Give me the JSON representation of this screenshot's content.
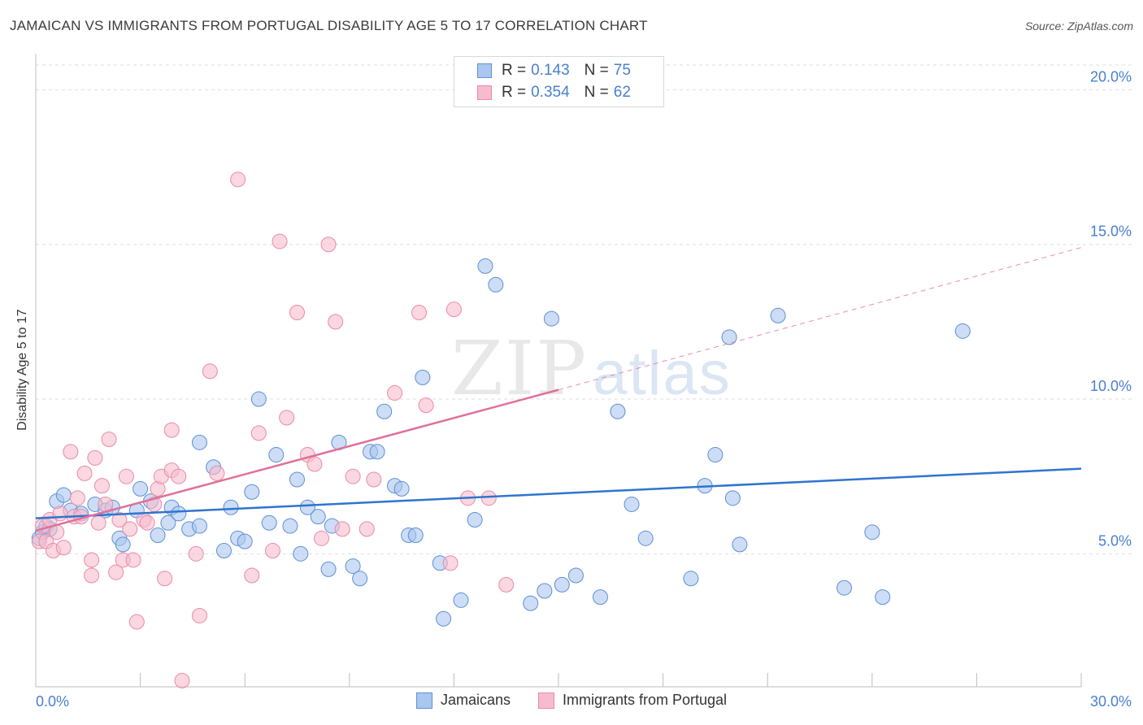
{
  "title": "JAMAICAN VS IMMIGRANTS FROM PORTUGAL DISABILITY AGE 5 TO 17 CORRELATION CHART",
  "source": "Source: ZipAtlas.com",
  "watermark": {
    "zip": "ZIP",
    "atlas": "atlas"
  },
  "legend_top": [
    {
      "r_label": "R =",
      "r_value": "0.143",
      "n_label": "N =",
      "n_value": "75"
    },
    {
      "r_label": "R =",
      "r_value": "0.354",
      "n_label": "N =",
      "n_value": "62"
    }
  ],
  "legend_bottom": [
    "Jamaicans",
    "Immigrants from Portugal"
  ],
  "colors": {
    "blue_fill": "#aac7ef",
    "blue_stroke": "#5e8fd6",
    "blue_line": "#2f74d0",
    "pink_fill": "#f6bccd",
    "pink_stroke": "#e98aa8",
    "pink_line": "#e0709a",
    "tick_label": "#4a7fd0",
    "grid": "#dedede"
  },
  "chart_data": {
    "type": "scatter",
    "title": "JAMAICAN VS IMMIGRANTS FROM PORTUGAL DISABILITY AGE 5 TO 17 CORRELATION CHART",
    "xlabel": "",
    "ylabel": "Disability Age 5 to 17",
    "xlim": [
      0,
      30
    ],
    "ylim": [
      0.7,
      20.8
    ],
    "x_tick_labels": [
      "0.0%",
      "30.0%"
    ],
    "y_ticks": [
      5,
      10,
      15,
      20
    ],
    "y_tick_labels": [
      "5.0%",
      "10.0%",
      "15.0%",
      "20.0%"
    ],
    "grid": true,
    "legend_position": "top-center",
    "series": [
      {
        "name": "Jamaicans",
        "color": "blue",
        "trend": {
          "x": [
            0,
            30
          ],
          "y": [
            6.15,
            7.75
          ]
        },
        "points": [
          [
            0.1,
            5.5
          ],
          [
            0.2,
            5.7
          ],
          [
            0.3,
            5.9
          ],
          [
            0.4,
            5.8
          ],
          [
            0.6,
            6.7
          ],
          [
            0.8,
            6.9
          ],
          [
            1.0,
            6.4
          ],
          [
            1.3,
            6.3
          ],
          [
            1.7,
            6.6
          ],
          [
            2.0,
            6.4
          ],
          [
            2.2,
            6.5
          ],
          [
            2.4,
            5.5
          ],
          [
            2.5,
            5.3
          ],
          [
            2.9,
            6.4
          ],
          [
            3.0,
            7.1
          ],
          [
            3.3,
            6.7
          ],
          [
            3.5,
            5.6
          ],
          [
            3.8,
            6.0
          ],
          [
            3.9,
            6.5
          ],
          [
            4.1,
            6.3
          ],
          [
            4.4,
            5.8
          ],
          [
            4.7,
            5.9
          ],
          [
            4.7,
            8.6
          ],
          [
            5.1,
            7.8
          ],
          [
            5.4,
            5.1
          ],
          [
            5.6,
            6.5
          ],
          [
            5.8,
            5.5
          ],
          [
            6.0,
            5.4
          ],
          [
            6.2,
            7.0
          ],
          [
            6.4,
            10.0
          ],
          [
            6.7,
            6.0
          ],
          [
            6.9,
            8.2
          ],
          [
            7.3,
            5.9
          ],
          [
            7.5,
            7.4
          ],
          [
            7.6,
            5.0
          ],
          [
            7.8,
            6.5
          ],
          [
            8.1,
            6.2
          ],
          [
            8.4,
            4.5
          ],
          [
            8.5,
            5.9
          ],
          [
            8.7,
            8.6
          ],
          [
            9.1,
            4.6
          ],
          [
            9.3,
            4.2
          ],
          [
            9.6,
            8.3
          ],
          [
            9.8,
            8.3
          ],
          [
            10.0,
            9.6
          ],
          [
            10.3,
            7.2
          ],
          [
            10.5,
            7.1
          ],
          [
            10.7,
            5.6
          ],
          [
            10.9,
            5.6
          ],
          [
            11.1,
            10.7
          ],
          [
            11.6,
            4.7
          ],
          [
            11.7,
            2.9
          ],
          [
            12.2,
            3.5
          ],
          [
            12.6,
            6.1
          ],
          [
            12.9,
            14.3
          ],
          [
            13.2,
            13.7
          ],
          [
            14.2,
            3.4
          ],
          [
            14.6,
            3.8
          ],
          [
            14.8,
            12.6
          ],
          [
            15.1,
            4.0
          ],
          [
            15.5,
            4.3
          ],
          [
            16.2,
            3.6
          ],
          [
            16.7,
            9.6
          ],
          [
            17.1,
            6.6
          ],
          [
            17.5,
            5.5
          ],
          [
            18.8,
            4.2
          ],
          [
            19.2,
            7.2
          ],
          [
            19.5,
            8.2
          ],
          [
            19.9,
            12.0
          ],
          [
            20.0,
            6.8
          ],
          [
            20.2,
            5.3
          ],
          [
            21.3,
            12.7
          ],
          [
            23.2,
            3.9
          ],
          [
            24.0,
            5.7
          ],
          [
            24.3,
            3.6
          ],
          [
            26.6,
            12.2
          ]
        ]
      },
      {
        "name": "Immigrants from Portugal",
        "color": "pink",
        "trend": {
          "x": [
            0,
            15
          ],
          "y": [
            5.75,
            10.3
          ]
        },
        "trend_extrapolated": {
          "x": [
            15,
            30
          ],
          "y": [
            10.3,
            14.9
          ]
        },
        "points": [
          [
            0.1,
            5.4
          ],
          [
            0.2,
            5.9
          ],
          [
            0.3,
            5.4
          ],
          [
            0.4,
            6.1
          ],
          [
            0.5,
            5.1
          ],
          [
            0.6,
            5.7
          ],
          [
            0.7,
            6.3
          ],
          [
            0.8,
            5.2
          ],
          [
            1.0,
            8.3
          ],
          [
            1.1,
            6.2
          ],
          [
            1.2,
            6.8
          ],
          [
            1.3,
            6.2
          ],
          [
            1.4,
            7.6
          ],
          [
            1.6,
            4.3
          ],
          [
            1.6,
            4.8
          ],
          [
            1.7,
            8.1
          ],
          [
            1.8,
            6.0
          ],
          [
            1.9,
            7.2
          ],
          [
            2.0,
            6.6
          ],
          [
            2.1,
            8.7
          ],
          [
            2.3,
            4.4
          ],
          [
            2.4,
            6.1
          ],
          [
            2.5,
            4.8
          ],
          [
            2.6,
            7.5
          ],
          [
            2.7,
            5.8
          ],
          [
            2.8,
            4.8
          ],
          [
            2.9,
            2.8
          ],
          [
            3.1,
            6.1
          ],
          [
            3.2,
            6.0
          ],
          [
            3.4,
            6.6
          ],
          [
            3.5,
            7.1
          ],
          [
            3.6,
            7.5
          ],
          [
            3.7,
            4.2
          ],
          [
            3.9,
            7.7
          ],
          [
            3.9,
            9.0
          ],
          [
            4.1,
            7.5
          ],
          [
            4.2,
            0.9
          ],
          [
            4.6,
            5.0
          ],
          [
            4.7,
            3.0
          ],
          [
            5.0,
            10.9
          ],
          [
            5.2,
            7.6
          ],
          [
            5.8,
            17.1
          ],
          [
            6.2,
            4.3
          ],
          [
            6.4,
            8.9
          ],
          [
            6.8,
            5.1
          ],
          [
            7.0,
            15.1
          ],
          [
            7.2,
            9.4
          ],
          [
            7.5,
            12.8
          ],
          [
            7.8,
            8.2
          ],
          [
            8.0,
            7.9
          ],
          [
            8.2,
            5.5
          ],
          [
            8.4,
            15.0
          ],
          [
            8.6,
            12.5
          ],
          [
            8.8,
            5.8
          ],
          [
            9.1,
            7.5
          ],
          [
            9.5,
            5.8
          ],
          [
            9.7,
            7.4
          ],
          [
            10.3,
            10.2
          ],
          [
            11.0,
            12.8
          ],
          [
            11.2,
            9.8
          ],
          [
            11.9,
            4.7
          ],
          [
            12.0,
            12.9
          ],
          [
            12.4,
            6.8
          ],
          [
            13.0,
            6.8
          ],
          [
            13.5,
            4.0
          ]
        ]
      }
    ]
  }
}
